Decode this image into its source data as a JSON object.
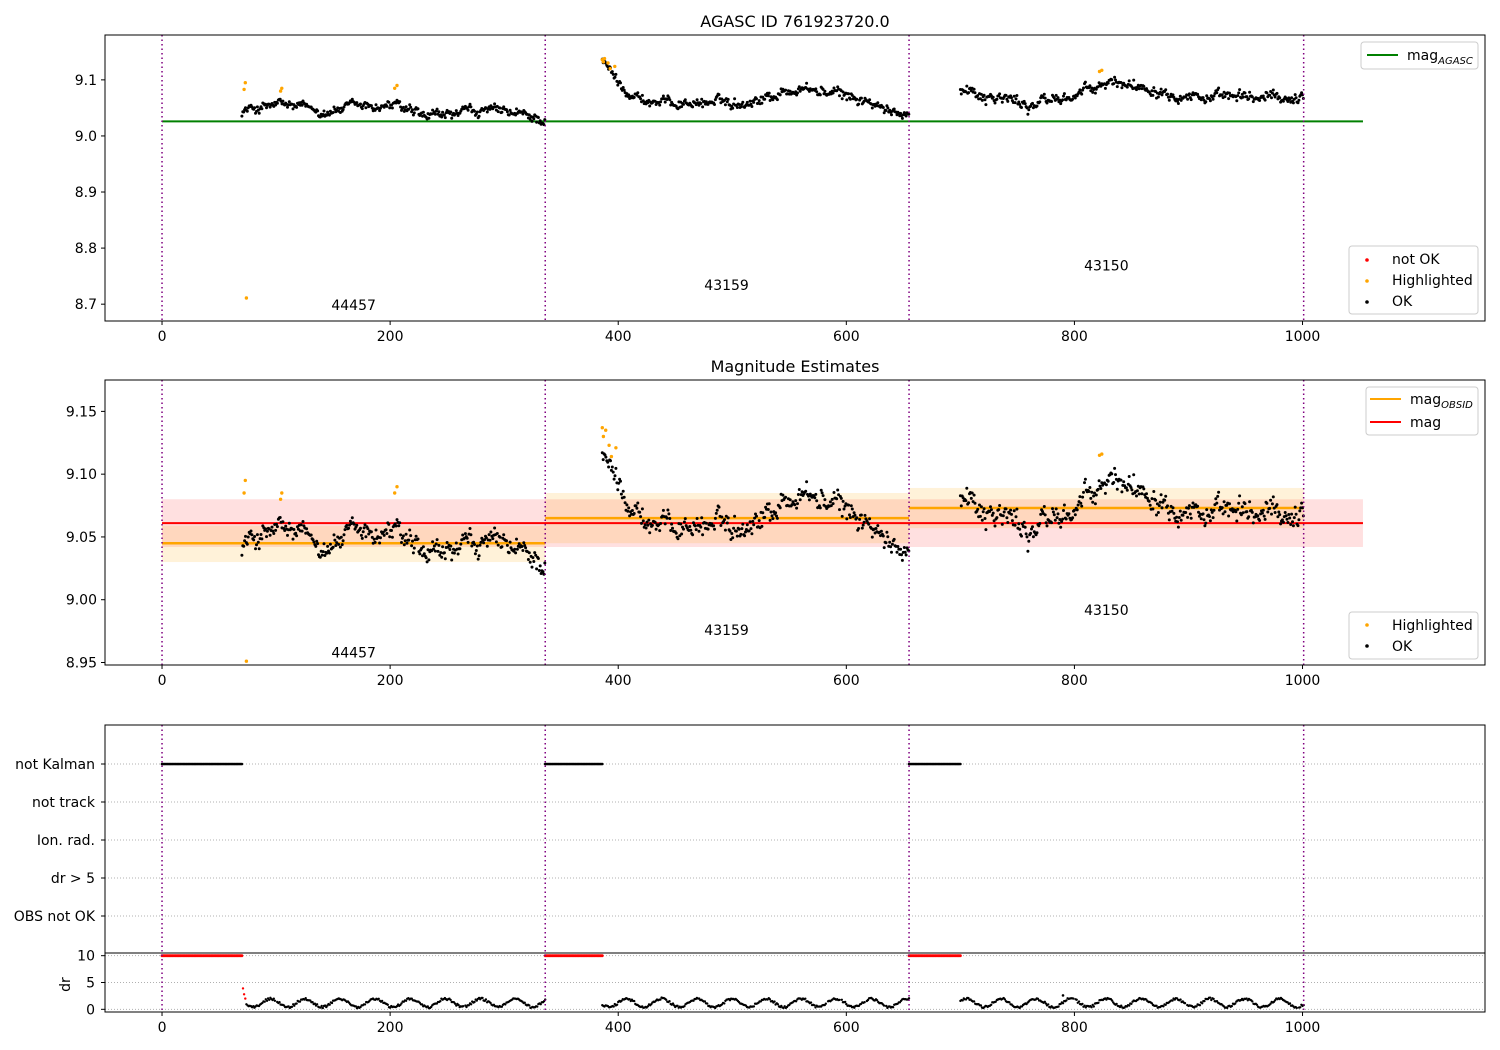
{
  "chart_data": [
    {
      "type": "scatter",
      "title": "AGASC ID 761923720.0",
      "xlim": [
        -50,
        1160
      ],
      "ylim": [
        8.67,
        9.18
      ],
      "xticks": [
        0,
        200,
        400,
        600,
        800,
        1000
      ],
      "yticks": [
        8.7,
        8.8,
        8.9,
        9.0,
        9.1
      ],
      "ytick_labels": [
        "8.7",
        "8.8",
        "8.9",
        "9.0",
        "9.1"
      ],
      "obs_boundaries": [
        0,
        336,
        655,
        1001
      ],
      "obs_labels": [
        {
          "text": "44457",
          "x": 168,
          "y": 8.69
        },
        {
          "text": "43159",
          "x": 495,
          "y": 8.725
        },
        {
          "text": "43150",
          "x": 828,
          "y": 8.76
        }
      ],
      "mag_agasc": {
        "label": "mag",
        "subscript": "AGASC",
        "value": 9.026,
        "x_range": [
          0,
          1053
        ],
        "color": "#008000"
      },
      "legend_lines": [
        {
          "label": "mag",
          "subscript": "AGASC",
          "color": "#008000"
        }
      ],
      "legend_points": [
        {
          "label": "not OK",
          "color": "#ff0000"
        },
        {
          "label": "Highlighted",
          "color": "#ffa500"
        },
        {
          "label": "OK",
          "color": "#000000"
        }
      ],
      "segments": [
        {
          "x_range": [
            70,
            336
          ],
          "levels": [
            [
              0,
              9.045
            ],
            [
              0.12,
              9.055
            ],
            [
              0.25,
              9.045
            ],
            [
              0.5,
              9.055
            ],
            [
              0.6,
              9.03
            ],
            [
              0.8,
              9.045
            ],
            [
              1,
              9.03
            ]
          ],
          "noise": 0.011
        },
        {
          "x_range": [
            386,
            655
          ],
          "levels": [
            [
              0,
              9.13
            ],
            [
              0.06,
              9.09
            ],
            [
              0.15,
              9.06
            ],
            [
              0.45,
              9.06
            ],
            [
              0.65,
              9.085
            ],
            [
              0.85,
              9.065
            ],
            [
              0.93,
              9.04
            ],
            [
              1,
              9.045
            ]
          ],
          "noise": 0.011
        },
        {
          "x_range": [
            700,
            1001
          ],
          "levels": [
            [
              0,
              9.085
            ],
            [
              0.2,
              9.055
            ],
            [
              0.35,
              9.075
            ],
            [
              0.45,
              9.095
            ],
            [
              0.6,
              9.085
            ],
            [
              0.75,
              9.065
            ],
            [
              1,
              9.07
            ]
          ],
          "noise": 0.012
        }
      ],
      "highlighted_points": [
        {
          "x": 72,
          "y": 9.083
        },
        {
          "x": 73,
          "y": 9.095
        },
        {
          "x": 74,
          "y": 8.711
        },
        {
          "x": 104,
          "y": 9.08
        },
        {
          "x": 105,
          "y": 9.085
        },
        {
          "x": 204,
          "y": 9.085
        },
        {
          "x": 206,
          "y": 9.09
        },
        {
          "x": 386,
          "y": 9.136
        },
        {
          "x": 387,
          "y": 9.132
        },
        {
          "x": 388,
          "y": 9.138
        },
        {
          "x": 391,
          "y": 9.13
        },
        {
          "x": 393,
          "y": 9.12
        },
        {
          "x": 397,
          "y": 9.124
        },
        {
          "x": 822,
          "y": 9.115
        },
        {
          "x": 824,
          "y": 9.117
        }
      ]
    },
    {
      "type": "scatter",
      "title": "Magnitude Estimates",
      "xlim": [
        -50,
        1160
      ],
      "ylim": [
        8.948,
        9.175
      ],
      "xticks": [
        0,
        200,
        400,
        600,
        800,
        1000
      ],
      "yticks": [
        8.95,
        9.0,
        9.05,
        9.1,
        9.15
      ],
      "ytick_labels": [
        "8.95",
        "9.00",
        "9.05",
        "9.10",
        "9.15"
      ],
      "obs_boundaries": [
        0,
        336,
        655,
        1001
      ],
      "obs_labels": [
        {
          "text": "44457",
          "x": 168,
          "y": 8.954
        },
        {
          "text": "43159",
          "x": 495,
          "y": 8.972
        },
        {
          "text": "43150",
          "x": 828,
          "y": 8.988
        }
      ],
      "mag_overall": {
        "label": "mag",
        "value": 9.061,
        "band": [
          9.042,
          9.08
        ],
        "x_range": [
          0,
          1053
        ],
        "color": "#ff0000"
      },
      "mag_obsid": [
        {
          "x_range": [
            0,
            336
          ],
          "value": 9.045,
          "band": [
            9.03,
            9.059
          ]
        },
        {
          "x_range": [
            336,
            655
          ],
          "value": 9.065,
          "band": [
            9.045,
            9.085
          ]
        },
        {
          "x_range": [
            655,
            1001
          ],
          "value": 9.073,
          "band": [
            9.057,
            9.089
          ]
        }
      ],
      "legend_lines": [
        {
          "label": "mag",
          "subscript": "OBSID",
          "color": "#ffa500"
        },
        {
          "label": "mag",
          "subscript": "",
          "color": "#ff0000"
        }
      ],
      "legend_points": [
        {
          "label": "Highlighted",
          "color": "#ffa500"
        },
        {
          "label": "OK",
          "color": "#000000"
        }
      ],
      "segments": [
        {
          "x_range": [
            70,
            336
          ],
          "levels": [
            [
              0,
              9.045
            ],
            [
              0.12,
              9.055
            ],
            [
              0.25,
              9.045
            ],
            [
              0.5,
              9.055
            ],
            [
              0.6,
              9.03
            ],
            [
              0.8,
              9.045
            ],
            [
              1,
              9.03
            ]
          ],
          "noise": 0.011
        },
        {
          "x_range": [
            386,
            655
          ],
          "levels": [
            [
              0,
              9.11
            ],
            [
              0.06,
              9.09
            ],
            [
              0.15,
              9.06
            ],
            [
              0.45,
              9.06
            ],
            [
              0.65,
              9.085
            ],
            [
              0.85,
              9.065
            ],
            [
              0.93,
              9.04
            ],
            [
              1,
              9.045
            ]
          ],
          "noise": 0.011
        },
        {
          "x_range": [
            700,
            1001
          ],
          "levels": [
            [
              0,
              9.085
            ],
            [
              0.2,
              9.055
            ],
            [
              0.35,
              9.075
            ],
            [
              0.45,
              9.095
            ],
            [
              0.6,
              9.085
            ],
            [
              0.75,
              9.065
            ],
            [
              1,
              9.07
            ]
          ],
          "noise": 0.012
        }
      ],
      "highlighted_points": [
        {
          "x": 72,
          "y": 9.085
        },
        {
          "x": 73,
          "y": 9.095
        },
        {
          "x": 74,
          "y": 8.951
        },
        {
          "x": 104,
          "y": 9.08
        },
        {
          "x": 105,
          "y": 9.085
        },
        {
          "x": 204,
          "y": 9.085
        },
        {
          "x": 206,
          "y": 9.09
        },
        {
          "x": 386,
          "y": 9.137
        },
        {
          "x": 387,
          "y": 9.13
        },
        {
          "x": 389,
          "y": 9.135
        },
        {
          "x": 392,
          "y": 9.123
        },
        {
          "x": 394,
          "y": 9.114
        },
        {
          "x": 398,
          "y": 9.121
        },
        {
          "x": 822,
          "y": 9.115
        },
        {
          "x": 824,
          "y": 9.116
        }
      ]
    },
    {
      "type": "scatter",
      "title": "",
      "xlim": [
        -50,
        1160
      ],
      "xticks": [
        0,
        200,
        400,
        600,
        800,
        1000
      ],
      "obs_boundaries": [
        0,
        336,
        655,
        1001
      ],
      "flag_rows": [
        "not Kalman",
        "not track",
        "Ion. rad.",
        "dr > 5",
        "OBS not OK"
      ],
      "not_kalman_ranges": [
        [
          0,
          70
        ],
        [
          336,
          386
        ],
        [
          655,
          700
        ]
      ],
      "dr": {
        "ylabel": "dr",
        "ylim": [
          -0.5,
          10.5
        ],
        "yticks": [
          0,
          5,
          10
        ],
        "ytick_labels": [
          "0",
          "5",
          "10"
        ],
        "clipped_value": 10,
        "clipped_ranges": [
          [
            0,
            70
          ],
          [
            336,
            386
          ],
          [
            655,
            700
          ]
        ],
        "start_values": [
          {
            "x": 71,
            "y": 3.9
          },
          {
            "x": 72,
            "y": 2.8
          },
          {
            "x": 73,
            "y": 2.0
          }
        ],
        "typical_range": [
          0.2,
          2.4
        ],
        "spike_point": {
          "x": 790,
          "y": 2.6
        }
      }
    }
  ]
}
